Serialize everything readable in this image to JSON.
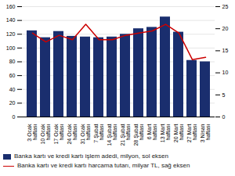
{
  "chart_data": {
    "type": "bar",
    "categories": [
      "3 Ocak\nhaftası",
      "10 Ocak\nhaftası",
      "17 Ocak\nhaftası",
      "24 Ocak\nhaftası",
      "31 Ocak\nhaftası",
      "7 Şubat\nhaftası",
      "14 Şubat\nhaftası",
      "21 Şubat\nhaftası",
      "28 Şubat\nhaftası",
      "6 Mart\nhaftası",
      "13 Mart\nhaftası",
      "20 Mart\nhaftası",
      "27 Mart\nhaftası",
      "3 Nisan\nhaftası"
    ],
    "series": [
      {
        "name": "Banka kartı ve kredi kartı işlem adedi, milyon, sol eksen",
        "type": "bar",
        "color": "#1a2e6e",
        "values": [
          125,
          115,
          124,
          117,
          116,
          115,
          116,
          120,
          128,
          130,
          145,
          123,
          82,
          80
        ]
      },
      {
        "name": "Banka kartı ve kredi kartı harcama tutarı, milyar TL, sağ eksen",
        "type": "line",
        "color": "#cc0000",
        "axis": "y2",
        "values": [
          19,
          17,
          18.5,
          17.5,
          21,
          17.5,
          17.5,
          18.5,
          19,
          19.5,
          21,
          19,
          13,
          13.5
        ]
      }
    ],
    "ylim": [
      0,
      160
    ],
    "yticks": [
      0,
      20,
      40,
      60,
      80,
      100,
      120,
      140,
      160
    ],
    "y2lim": [
      0,
      25
    ],
    "y2ticks": [
      0,
      5,
      10,
      15,
      20,
      25
    ],
    "grid": true,
    "legend": "lower left"
  }
}
